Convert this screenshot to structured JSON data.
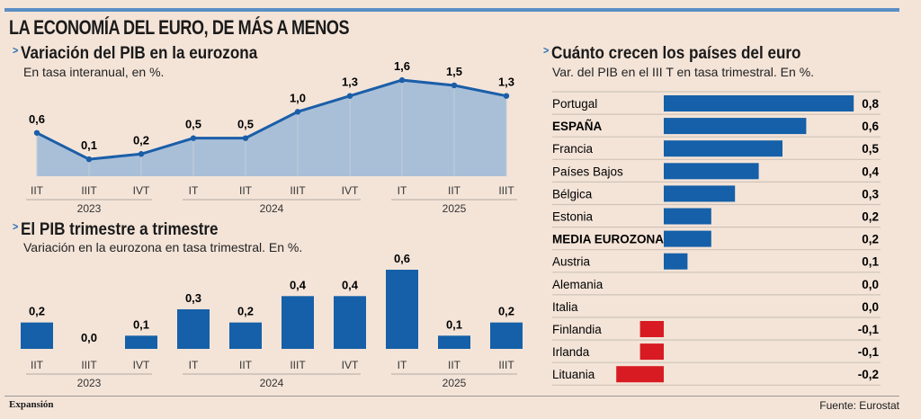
{
  "title": "LA ECONOMÍA DEL EURO, DE MÁS A MENOS",
  "footer": {
    "brand": "Expansión",
    "source": "Fuente: Eurostat"
  },
  "colors": {
    "bar": "#1560a8",
    "negative": "#d81b22",
    "area": "#a9bfd8",
    "line": "#1a5ea8",
    "background": "#f4e4d8",
    "topbar": "#5b8ec4"
  },
  "chart_data": [
    {
      "type": "area",
      "title": "Variación del PIB en la eurozona",
      "subtitle": "En tasa interanual, en %.",
      "categories": [
        "IIT",
        "IIIT",
        "IVT",
        "IT",
        "IIT",
        "IIIT",
        "IVT",
        "IT",
        "IIT",
        "IIIT"
      ],
      "groups": [
        {
          "label": "2023",
          "from": 0,
          "to": 2
        },
        {
          "label": "2024",
          "from": 3,
          "to": 6
        },
        {
          "label": "2025",
          "from": 7,
          "to": 9
        }
      ],
      "values": [
        0.6,
        0.1,
        0.2,
        0.5,
        0.5,
        1.0,
        1.3,
        1.6,
        1.5,
        1.3
      ],
      "labels": [
        "0,6",
        "0,1",
        "0,2",
        "0,5",
        "0,5",
        "1,0",
        "1,3",
        "1,6",
        "1,5",
        "1,3"
      ]
    },
    {
      "type": "bar",
      "title": "El PIB trimestre a trimestre",
      "subtitle": "Variación en la eurozona en tasa trimestral. En %.",
      "categories": [
        "IIT",
        "IIIT",
        "IVT",
        "IT",
        "IIT",
        "IIIT",
        "IVT",
        "IT",
        "IIT",
        "IIIT"
      ],
      "groups": [
        {
          "label": "2023",
          "from": 0,
          "to": 2
        },
        {
          "label": "2024",
          "from": 3,
          "to": 6
        },
        {
          "label": "2025",
          "from": 7,
          "to": 9
        }
      ],
      "values": [
        0.2,
        0.0,
        0.1,
        0.3,
        0.2,
        0.4,
        0.4,
        0.6,
        0.1,
        0.2
      ],
      "labels": [
        "0,2",
        "0,0",
        "0,1",
        "0,3",
        "0,2",
        "0,4",
        "0,4",
        "0,6",
        "0,1",
        "0,2"
      ]
    },
    {
      "type": "bar",
      "orientation": "horizontal",
      "title": "Cuánto crecen los países del euro",
      "subtitle": "Var. del PIB en el III T en tasa trimestral. En %.",
      "rows": [
        {
          "label": "Portugal",
          "value": 0.8,
          "text": "0,8",
          "bold": false
        },
        {
          "label": "ESPAÑA",
          "value": 0.6,
          "text": "0,6",
          "bold": true
        },
        {
          "label": "Francia",
          "value": 0.5,
          "text": "0,5",
          "bold": false
        },
        {
          "label": "Países Bajos",
          "value": 0.4,
          "text": "0,4",
          "bold": false
        },
        {
          "label": "Bélgica",
          "value": 0.3,
          "text": "0,3",
          "bold": false
        },
        {
          "label": "Estonia",
          "value": 0.2,
          "text": "0,2",
          "bold": false
        },
        {
          "label": "MEDIA EUROZONA",
          "value": 0.2,
          "text": "0,2",
          "bold": true
        },
        {
          "label": "Austria",
          "value": 0.1,
          "text": "0,1",
          "bold": false
        },
        {
          "label": "Alemania",
          "value": 0.0,
          "text": "0,0",
          "bold": false
        },
        {
          "label": "Italia",
          "value": 0.0,
          "text": "0,0",
          "bold": false
        },
        {
          "label": "Finlandia",
          "value": -0.1,
          "text": "-0,1",
          "bold": false
        },
        {
          "label": "Irlanda",
          "value": -0.1,
          "text": "-0,1",
          "bold": false
        },
        {
          "label": "Lituania",
          "value": -0.2,
          "text": "-0,2",
          "bold": false
        }
      ]
    }
  ]
}
